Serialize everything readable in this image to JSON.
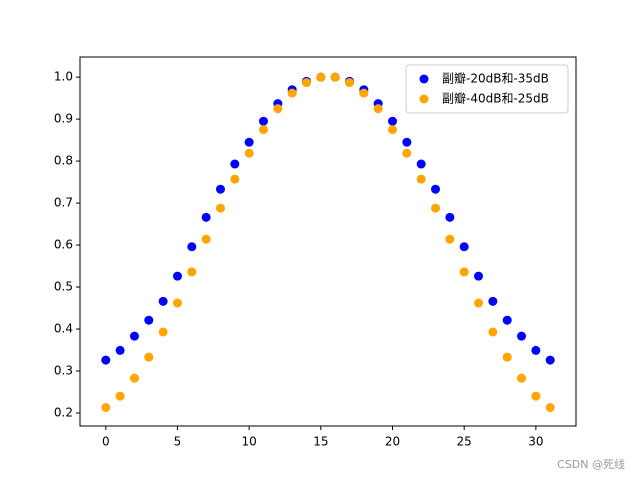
{
  "chart_data": {
    "type": "scatter",
    "x": [
      0,
      1,
      2,
      3,
      4,
      5,
      6,
      7,
      8,
      9,
      10,
      11,
      12,
      13,
      14,
      15,
      16,
      17,
      18,
      19,
      20,
      21,
      22,
      23,
      24,
      25,
      26,
      27,
      28,
      29,
      30,
      31
    ],
    "series": [
      {
        "name": "副瓣-20dB和-35dB",
        "color": "#0000ff",
        "values": [
          0.326,
          0.349,
          0.383,
          0.421,
          0.466,
          0.526,
          0.596,
          0.666,
          0.733,
          0.793,
          0.845,
          0.895,
          0.937,
          0.97,
          0.99,
          1.0,
          1.0,
          0.99,
          0.97,
          0.937,
          0.895,
          0.845,
          0.793,
          0.733,
          0.666,
          0.596,
          0.526,
          0.466,
          0.421,
          0.383,
          0.349,
          0.326
        ]
      },
      {
        "name": "副瓣-40dB和-25dB",
        "color": "#ffa500",
        "values": [
          0.213,
          0.24,
          0.283,
          0.333,
          0.393,
          0.462,
          0.536,
          0.614,
          0.688,
          0.757,
          0.819,
          0.875,
          0.925,
          0.962,
          0.987,
          1.0,
          1.0,
          0.987,
          0.962,
          0.925,
          0.875,
          0.819,
          0.757,
          0.688,
          0.614,
          0.536,
          0.462,
          0.393,
          0.333,
          0.283,
          0.24,
          0.213
        ]
      }
    ],
    "xlim": [
      -1.8,
      32.8
    ],
    "xticks": [
      0,
      5,
      10,
      15,
      20,
      25,
      30
    ],
    "ylim": [
      0.169,
      1.048
    ],
    "yticks": [
      0.2,
      0.3,
      0.4,
      0.5,
      0.6,
      0.7,
      0.8,
      0.9,
      {
        "value": 1,
        "label": "1.0"
      }
    ],
    "legend": "upper right"
  },
  "watermark": "CSDN @死线"
}
